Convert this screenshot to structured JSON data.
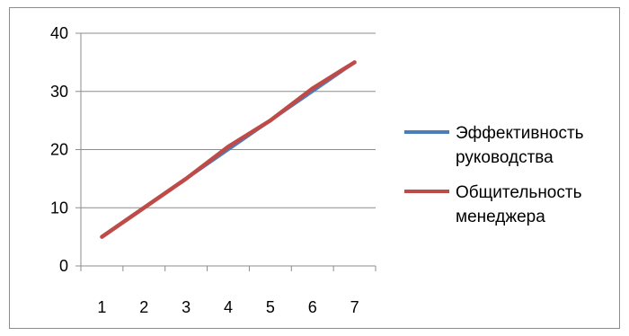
{
  "chart_data": {
    "type": "line",
    "x": [
      1,
      2,
      3,
      4,
      5,
      6,
      7
    ],
    "categories": [
      "1",
      "2",
      "3",
      "4",
      "5",
      "6",
      "7"
    ],
    "ylim": [
      0,
      40
    ],
    "yticks": [
      0,
      10,
      20,
      30,
      40
    ],
    "ytick_labels": [
      "0",
      "10",
      "20",
      "30",
      "40"
    ],
    "grid": true,
    "legend_position": "right",
    "series": [
      {
        "name": "Эффективность руководства",
        "name_lines": [
          "Эффективность",
          "руководства"
        ],
        "color": "#4a7ebb",
        "values": [
          5,
          10,
          15,
          20,
          25,
          30,
          35
        ]
      },
      {
        "name": "Общительность менеджера",
        "name_lines": [
          "Общительность",
          "менеджера"
        ],
        "color": "#be4b48",
        "values": [
          5,
          10,
          15,
          20.5,
          25,
          30.5,
          35
        ]
      }
    ]
  }
}
